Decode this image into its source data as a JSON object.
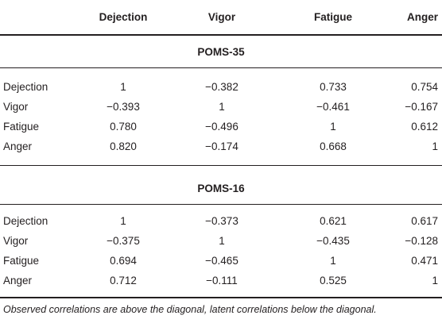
{
  "header": {
    "columns": [
      "",
      "Dejection",
      "Vigor",
      "Fatigue",
      "Anger"
    ]
  },
  "sections": [
    {
      "title": "POMS-35",
      "rows": [
        {
          "label": "Dejection",
          "values": [
            "1",
            "−0.382",
            "0.733",
            "0.754"
          ]
        },
        {
          "label": "Vigor",
          "values": [
            "−0.393",
            "1",
            "−0.461",
            "−0.167"
          ]
        },
        {
          "label": "Fatigue",
          "values": [
            "0.780",
            "−0.496",
            "1",
            "0.612"
          ]
        },
        {
          "label": "Anger",
          "values": [
            "0.820",
            "−0.174",
            "0.668",
            "1"
          ]
        }
      ]
    },
    {
      "title": "POMS-16",
      "rows": [
        {
          "label": "Dejection",
          "values": [
            "1",
            "−0.373",
            "0.621",
            "0.617"
          ]
        },
        {
          "label": "Vigor",
          "values": [
            "−0.375",
            "1",
            "−0.435",
            "−0.128"
          ]
        },
        {
          "label": "Fatigue",
          "values": [
            "0.694",
            "−0.465",
            "1",
            "0.471"
          ]
        },
        {
          "label": "Anger",
          "values": [
            "0.712",
            "−0.111",
            "0.525",
            "1"
          ]
        }
      ]
    }
  ],
  "footnote": "Observed correlations are above the diagonal, latent correlations below the diagonal."
}
